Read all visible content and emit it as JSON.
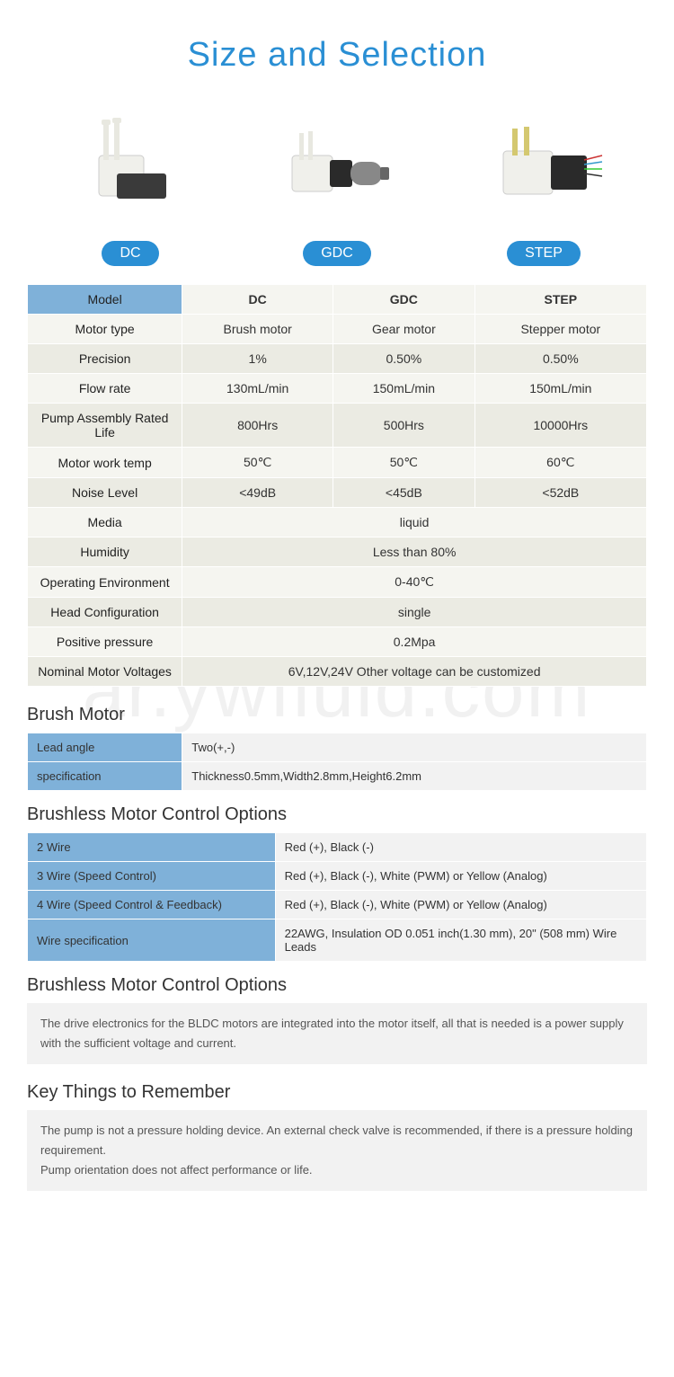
{
  "title": "Size and Selection",
  "watermark": "ar.ywfluid.com",
  "products": [
    {
      "label": "DC"
    },
    {
      "label": "GDC"
    },
    {
      "label": "STEP"
    }
  ],
  "spec_table": {
    "header": {
      "label": "Model",
      "cols": [
        "DC",
        "GDC",
        "STEP"
      ]
    },
    "rows": [
      {
        "label": "Motor type",
        "vals": [
          "Brush motor",
          "Gear motor",
          "Stepper motor"
        ]
      },
      {
        "label": "Precision",
        "vals": [
          "1%",
          "0.50%",
          "0.50%"
        ]
      },
      {
        "label": "Flow rate",
        "vals": [
          "130mL/min",
          "150mL/min",
          "150mL/min"
        ]
      },
      {
        "label": "Pump Assembly Rated Life",
        "vals": [
          "800Hrs",
          "500Hrs",
          "10000Hrs"
        ]
      },
      {
        "label": "Motor work temp",
        "vals": [
          "50℃",
          "50℃",
          "60℃"
        ]
      },
      {
        "label": "Noise Level",
        "vals": [
          "<49dB",
          "<45dB",
          "<52dB"
        ]
      }
    ],
    "merged_rows": [
      {
        "label": "Media",
        "val": "liquid"
      },
      {
        "label": "Humidity",
        "val": "Less than 80%"
      },
      {
        "label": "Operating Environment",
        "val": "0-40℃"
      },
      {
        "label": "Head Configuration",
        "val": "single"
      },
      {
        "label": "Positive pressure",
        "val": "0.2Mpa"
      },
      {
        "label": "Nominal Motor Voltages",
        "val": "6V,12V,24V Other voltage can be customized"
      }
    ]
  },
  "sections": [
    {
      "title": "Brush Motor",
      "rows": [
        {
          "label": "Lead angle",
          "val": "Two(+,-)"
        },
        {
          "label": "specification",
          "val": "Thickness0.5mm,Width2.8mm,Height6.2mm"
        }
      ]
    },
    {
      "title": "Brushless Motor Control Options",
      "wide": true,
      "rows": [
        {
          "label": "2 Wire",
          "val": "Red (+), Black (-)"
        },
        {
          "label": "3 Wire (Speed Control)",
          "val": "Red (+), Black (-), White (PWM) or Yellow (Analog)"
        },
        {
          "label": "4 Wire (Speed Control & Feedback)",
          "val": "Red (+), Black (-), White (PWM) or Yellow (Analog)"
        },
        {
          "label": "Wire specification",
          "val": "22AWG, Insulation OD 0.051 inch(1.30 mm), 20\" (508 mm) Wire Leads"
        }
      ]
    }
  ],
  "notes": [
    {
      "title": "Brushless Motor Control Options",
      "text": "The drive electronics for the BLDC motors are integrated into the motor itself, all that is needed is a power supply with the sufficient voltage and current."
    },
    {
      "title": "Key Things to Remember",
      "text": "The pump is not a pressure holding device. An external check valve is recommended, if there is a pressure holding requirement.\nPump orientation does not affect performance or life."
    }
  ]
}
